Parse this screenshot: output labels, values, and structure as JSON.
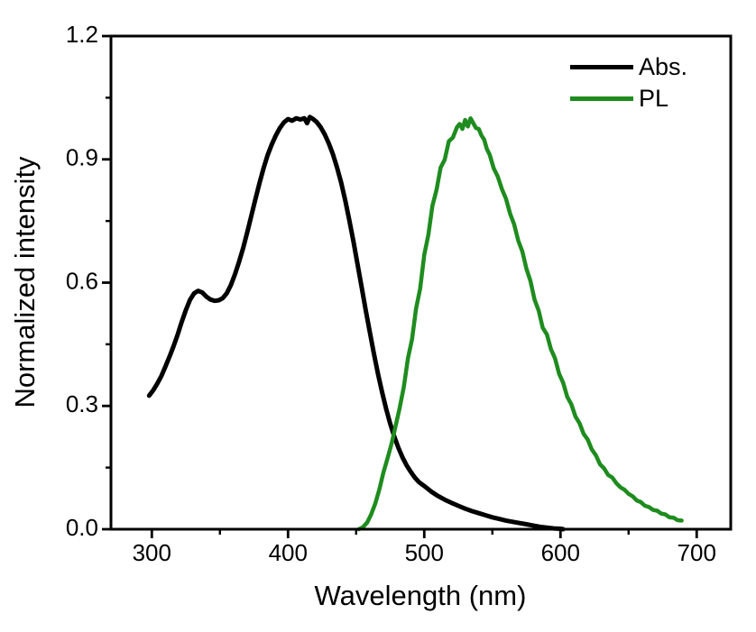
{
  "chart_data": {
    "type": "line",
    "title": "",
    "xlabel": "Wavelength (nm)",
    "ylabel": "Normalized intensity",
    "xlim": [
      270,
      725
    ],
    "ylim": [
      0,
      1.2
    ],
    "grid": false,
    "legend_position": "top-right",
    "x_major_ticks": [
      300,
      400,
      500,
      600,
      700
    ],
    "x_minor_ticks": [
      350,
      450,
      550,
      650
    ],
    "x_tick_labels": [
      "300",
      "400",
      "500",
      "600",
      "700"
    ],
    "y_major_ticks": [
      0.0,
      0.3,
      0.6,
      0.9,
      1.2
    ],
    "y_minor_ticks": [
      0.15,
      0.45,
      0.75,
      1.05
    ],
    "y_tick_labels": [
      "0.0",
      "0.3",
      "0.6",
      "0.9",
      "1.2"
    ],
    "series": [
      {
        "name": "Abs.",
        "color": "#000000",
        "x": [
          298,
          301,
          304,
          307,
          310,
          313,
          316,
          319,
          322,
          325,
          328,
          331,
          334,
          337,
          340,
          343,
          346,
          349,
          352,
          355,
          358,
          361,
          364,
          367,
          370,
          373,
          376,
          379,
          382,
          385,
          388,
          391,
          394,
          397,
          400,
          403,
          406,
          409,
          412,
          414,
          416,
          418,
          421,
          424,
          427,
          430,
          433,
          436,
          439,
          442,
          445,
          448,
          451,
          454,
          457,
          460,
          463,
          466,
          469,
          472,
          475,
          478,
          481,
          484,
          487,
          490,
          493,
          496,
          500,
          505,
          510,
          515,
          520,
          525,
          530,
          535,
          540,
          545,
          550,
          555,
          560,
          565,
          570,
          575,
          580,
          585,
          590,
          595,
          600,
          602
        ],
        "y": [
          0.325,
          0.338,
          0.354,
          0.373,
          0.396,
          0.42,
          0.446,
          0.474,
          0.505,
          0.533,
          0.558,
          0.574,
          0.58,
          0.576,
          0.566,
          0.559,
          0.556,
          0.557,
          0.562,
          0.574,
          0.594,
          0.62,
          0.65,
          0.684,
          0.722,
          0.762,
          0.802,
          0.842,
          0.878,
          0.91,
          0.936,
          0.958,
          0.976,
          0.99,
          0.998,
          0.994,
          1.0,
          0.997,
          1.0,
          0.988,
          1.003,
          0.999,
          0.991,
          0.978,
          0.96,
          0.938,
          0.912,
          0.88,
          0.843,
          0.8,
          0.752,
          0.7,
          0.645,
          0.59,
          0.534,
          0.48,
          0.428,
          0.379,
          0.334,
          0.293,
          0.257,
          0.225,
          0.198,
          0.175,
          0.156,
          0.14,
          0.126,
          0.115,
          0.105,
          0.092,
          0.081,
          0.072,
          0.064,
          0.057,
          0.05,
          0.044,
          0.039,
          0.034,
          0.029,
          0.025,
          0.021,
          0.018,
          0.015,
          0.012,
          0.009,
          0.006,
          0.004,
          0.002,
          0.001,
          0.0
        ]
      },
      {
        "name": "PL",
        "color": "#1e8c1e",
        "x": [
          452,
          455,
          458,
          461,
          464,
          467,
          470,
          473,
          476,
          479,
          482,
          485,
          488,
          491,
          494,
          497,
          500,
          503,
          506,
          509,
          512,
          515,
          518,
          521,
          524,
          526,
          528,
          530,
          532,
          534,
          536,
          538,
          540,
          542,
          544,
          546,
          548,
          551,
          554,
          557,
          560,
          563,
          566,
          569,
          572,
          575,
          578,
          581,
          584,
          587,
          590,
          593,
          596,
          599,
          602,
          605,
          608,
          611,
          614,
          617,
          620,
          623,
          626,
          629,
          632,
          635,
          638,
          641,
          644,
          647,
          650,
          653,
          656,
          659,
          662,
          665,
          668,
          671,
          674,
          677,
          680,
          683,
          686,
          689
        ],
        "y": [
          0.0,
          0.005,
          0.016,
          0.036,
          0.062,
          0.096,
          0.138,
          0.172,
          0.208,
          0.252,
          0.296,
          0.346,
          0.416,
          0.462,
          0.537,
          0.585,
          0.668,
          0.716,
          0.787,
          0.826,
          0.88,
          0.899,
          0.944,
          0.953,
          0.978,
          0.986,
          0.974,
          0.996,
          0.98,
          1.0,
          0.988,
          0.976,
          0.974,
          0.958,
          0.948,
          0.925,
          0.912,
          0.878,
          0.858,
          0.828,
          0.804,
          0.768,
          0.742,
          0.702,
          0.676,
          0.634,
          0.604,
          0.558,
          0.532,
          0.49,
          0.474,
          0.438,
          0.416,
          0.378,
          0.356,
          0.322,
          0.304,
          0.274,
          0.258,
          0.232,
          0.218,
          0.194,
          0.18,
          0.158,
          0.148,
          0.132,
          0.126,
          0.112,
          0.102,
          0.096,
          0.086,
          0.08,
          0.07,
          0.066,
          0.057,
          0.054,
          0.047,
          0.045,
          0.038,
          0.036,
          0.029,
          0.028,
          0.022,
          0.021
        ]
      }
    ]
  },
  "legend": {
    "items": [
      {
        "label": "Abs.",
        "color": "#000000"
      },
      {
        "label": "PL",
        "color": "#1e8c1e"
      }
    ]
  },
  "style": {
    "frame_color": "#000000",
    "background": "#ffffff",
    "abs_line_width": 5,
    "pl_line_width": 4.5
  }
}
